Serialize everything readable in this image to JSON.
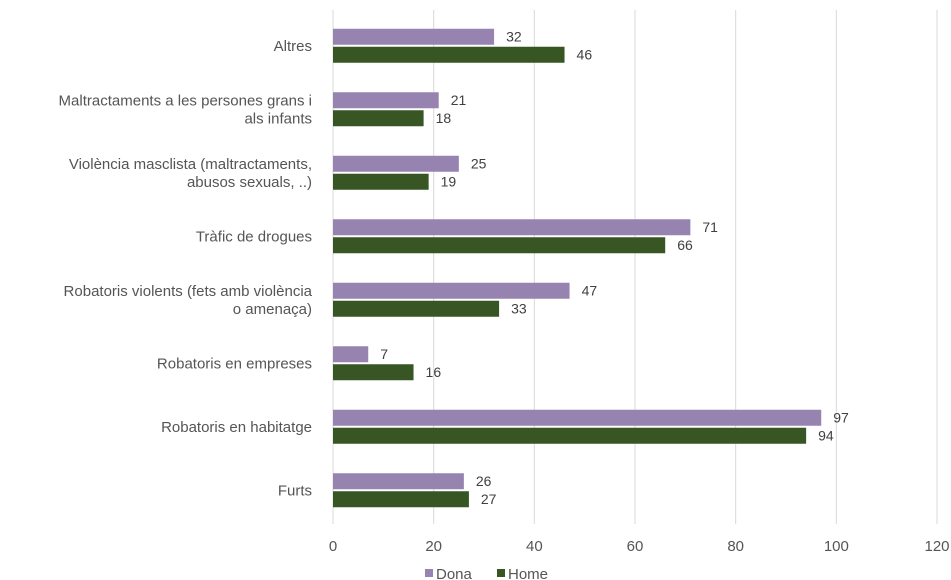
{
  "chart_data": {
    "type": "bar",
    "orientation": "horizontal",
    "categories": [
      [
        "Altres"
      ],
      [
        "Maltractaments a les persones grans i",
        "als infants"
      ],
      [
        "Violència masclista (maltractaments,",
        "abusos sexuals, ..)"
      ],
      [
        "Tràfic de drogues"
      ],
      [
        "Robatoris violents (fets amb violència",
        "o amenaça)"
      ],
      [
        "Robatoris en empreses"
      ],
      [
        "Robatoris en habitatge"
      ],
      [
        "Furts"
      ]
    ],
    "series": [
      {
        "name": "Dona",
        "color": "#9783b0",
        "values": [
          32,
          21,
          25,
          71,
          47,
          7,
          97,
          26
        ]
      },
      {
        "name": "Home",
        "color": "#375623",
        "values": [
          46,
          18,
          19,
          66,
          33,
          16,
          94,
          27
        ]
      }
    ],
    "xlim": [
      0,
      120
    ],
    "xticks": [
      0,
      20,
      40,
      60,
      80,
      100,
      120
    ],
    "grid": true,
    "legend_position": "bottom",
    "title": "",
    "xlabel": "",
    "ylabel": ""
  }
}
